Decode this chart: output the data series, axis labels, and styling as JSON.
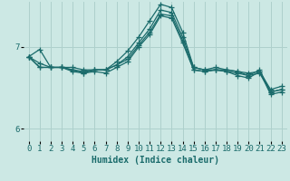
{
  "title": "",
  "xlabel": "Humidex (Indice chaleur)",
  "background_color": "#cce8e4",
  "line_color": "#1a6b6b",
  "grid_color": "#aed0cc",
  "xlim": [
    -0.5,
    23.5
  ],
  "ylim": [
    5.85,
    7.55
  ],
  "yticks": [
    6,
    7
  ],
  "xticks": [
    0,
    1,
    2,
    3,
    4,
    5,
    6,
    7,
    8,
    9,
    10,
    11,
    12,
    13,
    14,
    15,
    16,
    17,
    18,
    19,
    20,
    21,
    22,
    23
  ],
  "series": [
    [
      6.88,
      6.97,
      6.75,
      6.75,
      6.75,
      6.72,
      6.72,
      6.72,
      6.82,
      6.95,
      7.12,
      7.32,
      7.52,
      7.48,
      7.18,
      6.75,
      6.72,
      6.72,
      6.72,
      6.7,
      6.68,
      6.7,
      6.48,
      6.52
    ],
    [
      6.88,
      6.8,
      6.75,
      6.75,
      6.7,
      6.68,
      6.7,
      6.68,
      6.75,
      6.82,
      7.0,
      7.15,
      7.38,
      7.35,
      7.05,
      6.72,
      6.7,
      6.72,
      6.7,
      6.68,
      6.65,
      6.68,
      6.45,
      6.48
    ],
    [
      6.88,
      6.75,
      6.75,
      6.75,
      6.72,
      6.68,
      6.72,
      6.72,
      6.78,
      6.88,
      7.05,
      7.22,
      7.45,
      7.42,
      7.12,
      6.75,
      6.72,
      6.75,
      6.72,
      6.7,
      6.65,
      6.72,
      6.45,
      6.48
    ],
    [
      6.88,
      6.75,
      6.75,
      6.75,
      6.72,
      6.7,
      6.72,
      6.72,
      6.78,
      6.85,
      7.02,
      7.18,
      7.4,
      7.38,
      7.08,
      6.72,
      6.7,
      6.72,
      6.7,
      6.65,
      6.62,
      6.7,
      6.42,
      6.45
    ]
  ],
  "marker": "+",
  "markersize": 4,
  "linewidth": 0.9
}
